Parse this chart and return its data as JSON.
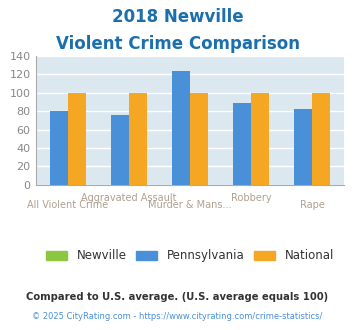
{
  "title_line1": "2018 Newville",
  "title_line2": "Violent Crime Comparison",
  "title_color": "#1a6fad",
  "cat_top": [
    "",
    "Aggravated Assault",
    "",
    "Robbery",
    ""
  ],
  "cat_bot": [
    "All Violent Crime",
    "",
    "Murder & Mans...",
    "",
    "Rape"
  ],
  "newville": [
    0,
    0,
    0,
    0,
    0
  ],
  "pennsylvania": [
    80,
    76,
    124,
    89,
    82
  ],
  "national": [
    100,
    100,
    100,
    100,
    100
  ],
  "newville_color": "#8dc63f",
  "penn_color": "#4a90d9",
  "national_color": "#f5a623",
  "bg_color": "#dce8ef",
  "ylim": [
    0,
    140
  ],
  "yticks": [
    0,
    20,
    40,
    60,
    80,
    100,
    120,
    140
  ],
  "footer1": "Compared to U.S. average. (U.S. average equals 100)",
  "footer2_pre": "© 2025 CityRating.com - ",
  "footer2_link": "https://www.cityrating.com/crime-statistics/",
  "footer1_color": "#333333",
  "footer2_color": "#888888",
  "footer2_link_color": "#4a90d9",
  "legend_labels": [
    "Newville",
    "Pennsylvania",
    "National"
  ],
  "label_top_color": "#b0a090",
  "label_bot_color": "#b0a090"
}
